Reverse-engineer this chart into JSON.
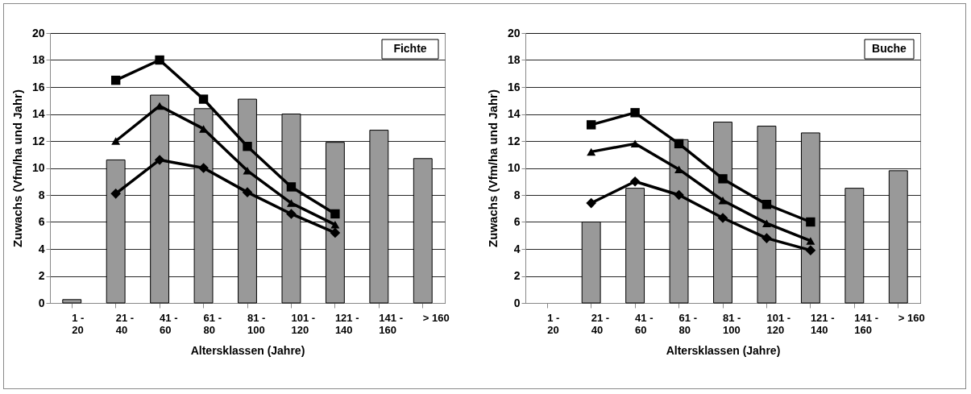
{
  "chart_data": [
    {
      "type": "bar",
      "categories": [
        "1 -\n20",
        "21 -\n40",
        "41 -\n60",
        "61 -\n80",
        "81 -\n100",
        "101 -\n120",
        "121 -\n140",
        "141 -\n160",
        "> 160"
      ],
      "xlabel": "Altersklassen (Jahre)",
      "ylabel": "Zuwachs (Vfm/ha und Jahr)",
      "ylim": [
        0,
        20
      ],
      "yticks": [
        0,
        2,
        4,
        6,
        8,
        10,
        12,
        14,
        16,
        18,
        20
      ],
      "grid": "y",
      "annotations": [
        "Fichte"
      ],
      "series": [
        {
          "color": "#999999",
          "values": [
            0.25,
            10.6,
            15.4,
            14.4,
            15.1,
            14.0,
            11.9,
            12.8,
            10.7
          ]
        },
        {
          "type": "line",
          "color": "#000000",
          "marker": "square",
          "values": [
            null,
            16.5,
            18.0,
            15.1,
            11.6,
            8.6,
            6.6,
            null,
            null
          ]
        },
        {
          "type": "line",
          "color": "#000000",
          "marker": "triangle",
          "values": [
            null,
            12.0,
            14.6,
            12.9,
            9.8,
            7.4,
            5.8,
            null,
            null
          ]
        },
        {
          "type": "line",
          "color": "#000000",
          "marker": "diamond",
          "values": [
            null,
            8.1,
            10.6,
            10.0,
            8.2,
            6.6,
            5.2,
            null,
            null
          ]
        }
      ]
    },
    {
      "type": "bar",
      "categories": [
        "1 -\n20",
        "21 -\n40",
        "41 -\n60",
        "61 -\n80",
        "81 -\n100",
        "101 -\n120",
        "121 -\n140",
        "141 -\n160",
        "> 160"
      ],
      "xlabel": "Altersklassen (Jahre)",
      "ylabel": "Zuwachs (Vfm/ha und Jahr)",
      "ylim": [
        0,
        20
      ],
      "yticks": [
        0,
        2,
        4,
        6,
        8,
        10,
        12,
        14,
        16,
        18,
        20
      ],
      "grid": "y",
      "annotations": [
        "Buche"
      ],
      "series": [
        {
          "color": "#999999",
          "values": [
            null,
            6.0,
            8.5,
            12.1,
            13.4,
            13.1,
            12.6,
            8.5,
            9.8
          ]
        },
        {
          "type": "line",
          "color": "#000000",
          "marker": "square",
          "values": [
            null,
            13.2,
            14.1,
            11.8,
            9.2,
            7.3,
            6.0,
            null,
            null
          ]
        },
        {
          "type": "line",
          "color": "#000000",
          "marker": "triangle",
          "values": [
            null,
            11.2,
            11.8,
            9.9,
            7.6,
            5.9,
            4.6,
            null,
            null
          ]
        },
        {
          "type": "line",
          "color": "#000000",
          "marker": "diamond",
          "values": [
            null,
            7.4,
            9.0,
            8.0,
            6.3,
            4.8,
            3.9,
            null,
            null
          ]
        }
      ]
    }
  ]
}
